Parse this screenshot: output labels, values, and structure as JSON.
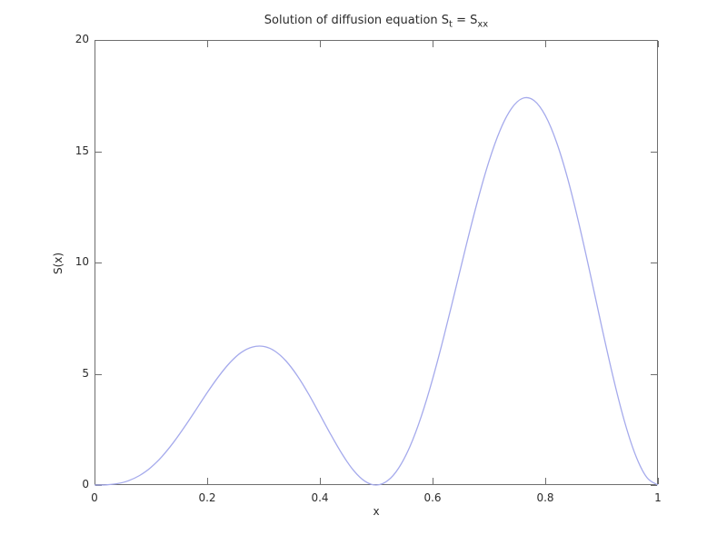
{
  "title": {
    "p1": "Solution of diffusion equation S",
    "sub1": "t",
    "p2": " = S",
    "sub2": "xx"
  },
  "chart_data": {
    "type": "line",
    "title": "Solution of diffusion equation S_t = S_xx",
    "xlabel": "x",
    "ylabel": "S(x)",
    "xlim": [
      0,
      1
    ],
    "ylim": [
      0,
      20
    ],
    "xticks": [
      0,
      0.2,
      0.4,
      0.6,
      0.8,
      1
    ],
    "xtick_labels": [
      "0",
      "0.2",
      "0.4",
      "0.6",
      "0.8",
      "1"
    ],
    "yticks": [
      0,
      5,
      10,
      15,
      20
    ],
    "ytick_labels": [
      "0",
      "5",
      "10",
      "15",
      "20"
    ],
    "grid": false,
    "legend": false,
    "frame_color": "#6e6e6e",
    "text_color": "#2b2b2b",
    "line_color": "#a5aaec",
    "local_max": {
      "x": 0.29,
      "y": 6.2
    },
    "global_max": {
      "x": 0.77,
      "y": 17.4
    },
    "zeros": [
      0,
      0.5,
      1
    ],
    "series": [
      {
        "name": "S(x)",
        "x": [
          0.0,
          0.02,
          0.04,
          0.06,
          0.08,
          0.1,
          0.12,
          0.14,
          0.16,
          0.18,
          0.2,
          0.22,
          0.24,
          0.26,
          0.28,
          0.3,
          0.32,
          0.34,
          0.36,
          0.38,
          0.4,
          0.42,
          0.44,
          0.46,
          0.48,
          0.5,
          0.52,
          0.54,
          0.56,
          0.58,
          0.6,
          0.62,
          0.64,
          0.66,
          0.68,
          0.7,
          0.72,
          0.74,
          0.76,
          0.78,
          0.8,
          0.82,
          0.84,
          0.86,
          0.88,
          0.9,
          0.92,
          0.94,
          0.96,
          0.98,
          1.0
        ],
        "y": [
          0.0,
          0.01,
          0.06,
          0.19,
          0.43,
          0.79,
          1.29,
          1.91,
          2.62,
          3.38,
          4.15,
          4.87,
          5.49,
          5.95,
          6.2,
          6.23,
          6.02,
          5.57,
          4.91,
          4.09,
          3.17,
          2.24,
          1.37,
          0.65,
          0.17,
          0.0,
          0.19,
          0.77,
          1.74,
          3.09,
          4.76,
          6.67,
          8.72,
          10.8,
          12.78,
          14.54,
          15.95,
          16.92,
          17.38,
          17.28,
          16.61,
          15.41,
          13.75,
          11.72,
          9.47,
          7.14,
          4.9,
          2.92,
          1.36,
          0.35,
          0.0
        ]
      }
    ]
  }
}
